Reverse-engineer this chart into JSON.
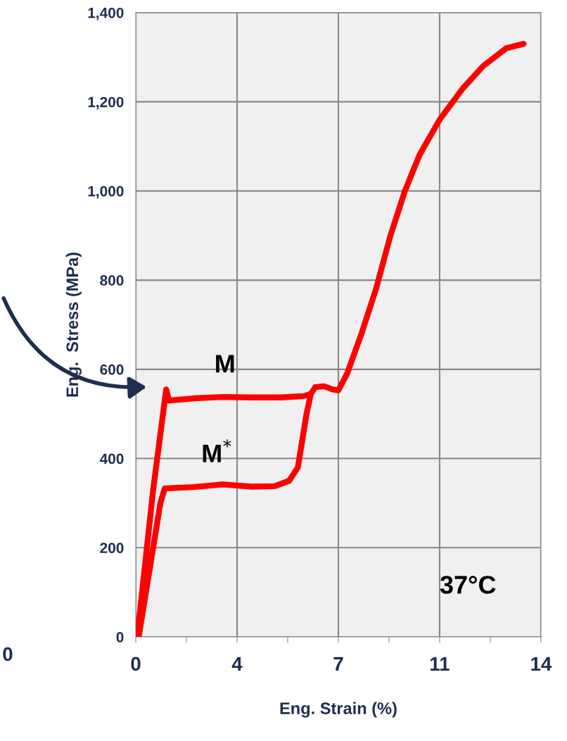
{
  "chart_data": {
    "type": "line",
    "xlabel": "Eng. Strain (%)",
    "ylabel": "Eng.  Stress (MPa)",
    "xlim": [
      0,
      14
    ],
    "ylim": [
      0,
      1400
    ],
    "xticks": [
      0,
      {
        "value": 1.75,
        "label": null
      },
      {
        "value": 3.5,
        "label": "4"
      },
      {
        "value": 5.25,
        "label": null
      },
      7,
      {
        "value": 8.75,
        "label": null
      },
      {
        "value": 10.5,
        "label": "11"
      },
      {
        "value": 12.25,
        "label": null
      },
      14
    ],
    "yticks": [
      0,
      200,
      400,
      600,
      800,
      {
        "value": 1000,
        "label": "1,000"
      },
      {
        "value": 1200,
        "label": "1,200"
      },
      {
        "value": 1400,
        "label": "1,400"
      }
    ],
    "grid": true,
    "line_style": "solid",
    "marker": "none",
    "series": [
      {
        "color": "#ff0000",
        "x": [
          0.05,
          0.3,
          0.6,
          0.9,
          1.05,
          1.15,
          2,
          3,
          4,
          5,
          5.8,
          6.05,
          5.9,
          5.75,
          5.6,
          5.3,
          4.8,
          4,
          3,
          2,
          1,
          0.85,
          0.6,
          0.3,
          0.1
        ],
        "values": [
          0,
          150,
          330,
          480,
          555,
          530,
          535,
          538,
          537,
          537,
          540,
          545,
          500,
          440,
          380,
          350,
          338,
          337,
          342,
          336,
          333,
          300,
          200,
          80,
          0
        ]
      },
      {
        "color": "#ff0000",
        "x": [
          6.05,
          6.2,
          6.5,
          6.8,
          7.0,
          7.3,
          7.8,
          8.3,
          8.8,
          9.3,
          9.8,
          10.5,
          11.3,
          12,
          12.8,
          13.4
        ],
        "values": [
          545,
          560,
          562,
          555,
          553,
          590,
          680,
          780,
          900,
          1000,
          1080,
          1160,
          1230,
          1280,
          1320,
          1330
        ]
      }
    ],
    "annotations": [
      "M",
      "M$^{*}$",
      "37°C",
      "0"
    ]
  }
}
